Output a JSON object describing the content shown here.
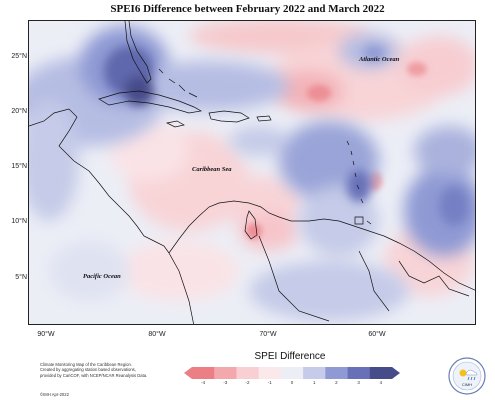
{
  "title": "SPEI6 Difference between February 2022 and March 2022",
  "lat_ticks": [
    "25°N",
    "20°N",
    "15°N",
    "10°N",
    "5°N"
  ],
  "lon_ticks": [
    "90°W",
    "80°W",
    "70°W",
    "60°W"
  ],
  "map_labels": {
    "atlantic": "Atlantic Ocean",
    "caribbean": "Caribbean Sea",
    "pacific": "Pacific Ocean"
  },
  "legend": {
    "title": "SPEI Difference",
    "ticks": [
      "-4",
      "-3",
      "-2",
      "-1",
      "0",
      "1",
      "2",
      "3",
      "4"
    ],
    "colors": [
      "#ec7f86",
      "#f3a8ad",
      "#f8cfd2",
      "#fbe8ea",
      "#eceef6",
      "#c5cbe8",
      "#8f9ad4",
      "#6871b8",
      "#464c8a"
    ]
  },
  "credits": {
    "line1": "Climate Monitoring Map of the Caribbean Region.",
    "line2": "Created by aggregating station based observations,",
    "line3": "provided by CariCOF, with NCEP/NCAR Reanalysis Data.",
    "date": "©IMH Apr-2022"
  },
  "logo": {
    "text": "CIMH",
    "sun_color": "#f2c21a",
    "rain_color": "#3a6fb5"
  }
}
